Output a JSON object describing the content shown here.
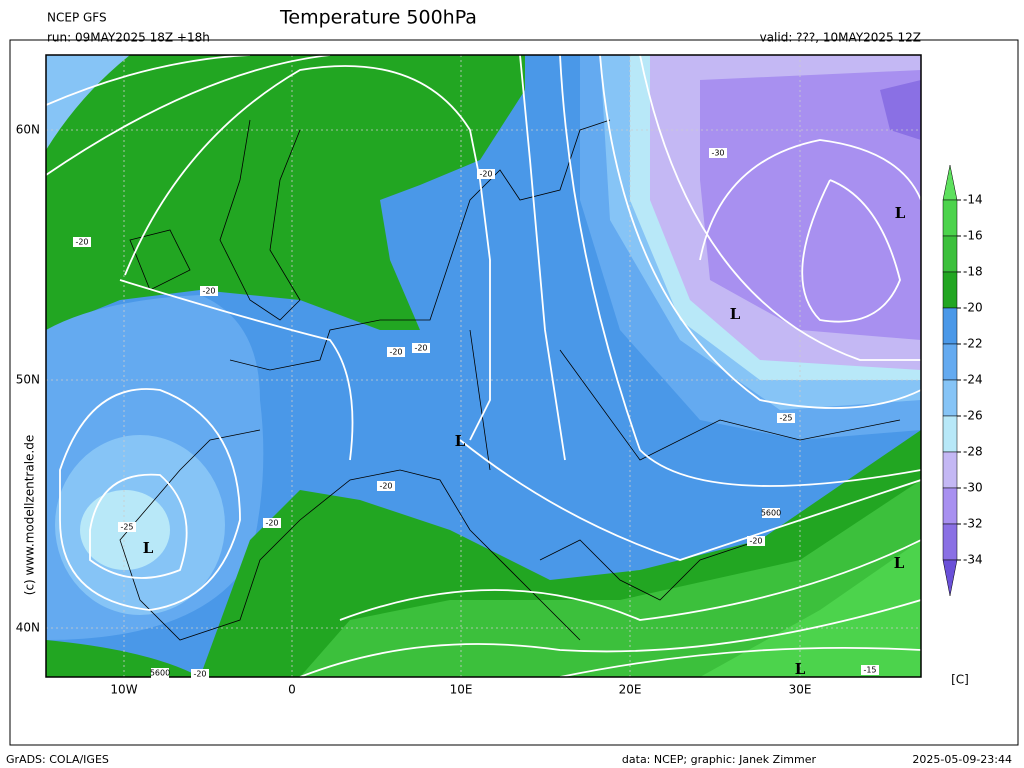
{
  "header": {
    "model": "NCEP GFS",
    "title": "Temperature 500hPa",
    "run": "run: 09MAY2025 18Z +18h",
    "valid": "valid: ???, 10MAY2025 12Z"
  },
  "map": {
    "lat_labels": [
      "60N",
      "50N",
      "40N"
    ],
    "lon_labels": [
      "10W",
      "0",
      "10E",
      "20E",
      "30E"
    ],
    "contour_labels": [
      "-20",
      "-20",
      "-20",
      "-20",
      "-20",
      "-20",
      "-20",
      "-20",
      "-20",
      "-25",
      "-25",
      "-30",
      "5600",
      "5600",
      "-15"
    ],
    "lows": [
      "L",
      "L",
      "L",
      "L",
      "L",
      "L"
    ]
  },
  "colorbar": {
    "labels": [
      "-14",
      "-16",
      "-18",
      "-20",
      "-22",
      "-24",
      "-26",
      "-28",
      "-30",
      "-32",
      "-34"
    ],
    "unit": "[C]"
  },
  "watermark": "(c)  www.modellzentrale.de",
  "footer": {
    "left": "GrADS: COLA/IGES",
    "center": "data: NCEP; graphic: Janek Zimmer",
    "right": "2025-05-09-23:44"
  }
}
